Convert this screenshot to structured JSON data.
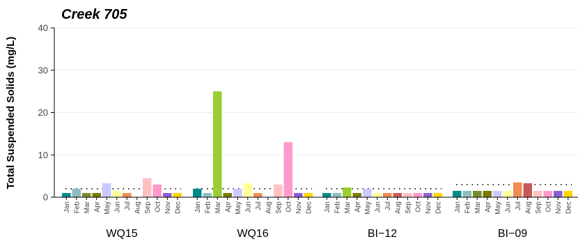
{
  "chart_data": {
    "type": "bar",
    "title": "Creek 705",
    "ylabel": "Total Suspended Solids (mg/L)",
    "xlabel": "",
    "ylim": [
      0,
      40
    ],
    "yticks": [
      "0",
      "10",
      "20",
      "30",
      "40"
    ],
    "grid": true,
    "months": [
      "Jan",
      "Feb",
      "Mar",
      "Apr",
      "May",
      "Jun",
      "Jul",
      "Aug",
      "Sep",
      "Oct",
      "Nov",
      "Dec"
    ],
    "month_colors": [
      "#008B8B",
      "#8FBDBD",
      "#7A8B2B",
      "#7A7A00",
      "#C9C9FF",
      "#FFFF99",
      "#F08C55",
      "#C95858",
      "#FFC0C0",
      "#FF99CC",
      "#8B5FD1",
      "#FFD700"
    ],
    "groups": [
      {
        "name": "WQ15",
        "values": [
          1,
          2,
          1,
          1,
          3.3,
          1.5,
          1,
          null,
          4.5,
          3,
          1,
          1
        ],
        "highlight": [],
        "reference": 2
      },
      {
        "name": "WQ16",
        "values": [
          2,
          1,
          25,
          1,
          2,
          3.3,
          1,
          null,
          3,
          13,
          1,
          1
        ],
        "highlight": [
          2
        ],
        "reference": 2
      },
      {
        "name": "BI−12",
        "values": [
          1,
          1,
          2.3,
          1,
          2,
          1,
          1,
          1,
          1,
          1,
          1,
          1
        ],
        "highlight": [
          2
        ],
        "reference": 2
      },
      {
        "name": "BI−09",
        "values": [
          1.5,
          1.5,
          1.5,
          1.5,
          1.5,
          1.5,
          3.5,
          3.3,
          1.5,
          1.5,
          1.5,
          1.5
        ],
        "highlight": [],
        "reference": 3
      }
    ],
    "highlight_color": "#9ACD32"
  }
}
